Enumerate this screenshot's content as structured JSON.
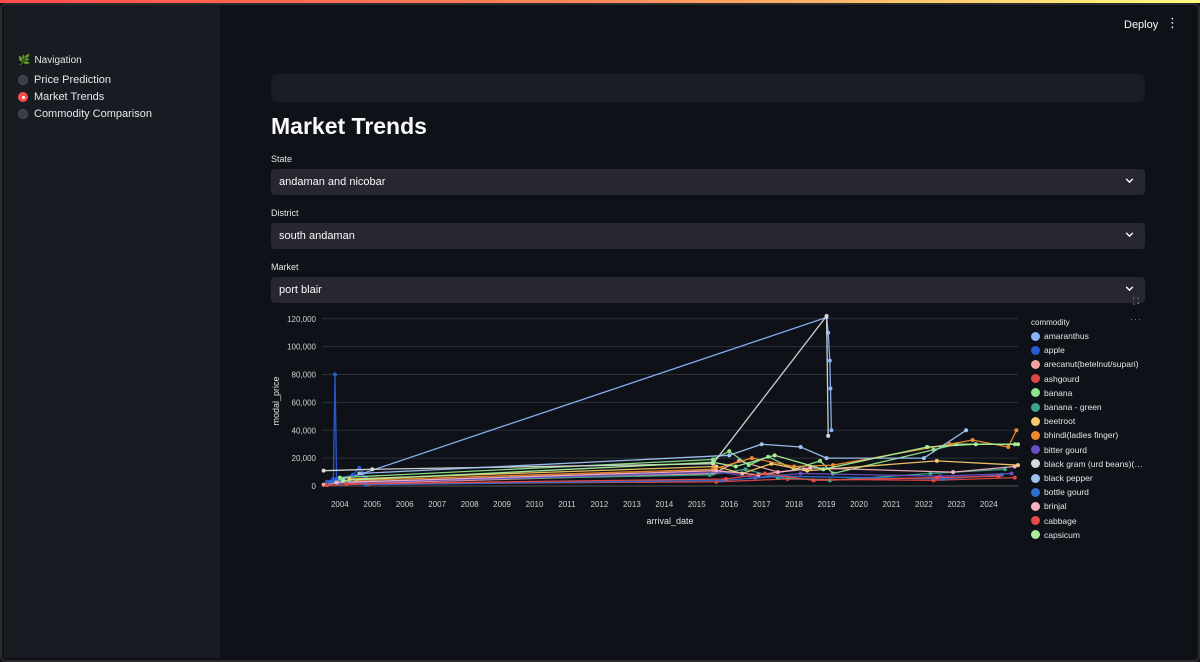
{
  "header": {
    "deploy_label": "Deploy",
    "menu_icon": "⋮"
  },
  "sidebar": {
    "title": "Navigation",
    "items": [
      {
        "label": "Price Prediction",
        "selected": false
      },
      {
        "label": "Market Trends",
        "selected": true
      },
      {
        "label": "Commodity Comparison",
        "selected": false
      }
    ]
  },
  "main": {
    "title": "Market Trends",
    "filters": [
      {
        "label": "State",
        "value": "andaman and nicobar"
      },
      {
        "label": "District",
        "value": "south andaman"
      },
      {
        "label": "Market",
        "value": "port blair"
      }
    ]
  },
  "chart_data": {
    "type": "line",
    "xlabel": "arrival_date",
    "ylabel": "modal_price",
    "x_ticks": [
      "2004",
      "2005",
      "2006",
      "2007",
      "2008",
      "2009",
      "2010",
      "2011",
      "2012",
      "2013",
      "2014",
      "2015",
      "2016",
      "2017",
      "2018",
      "2019",
      "2020",
      "2021",
      "2022",
      "2023",
      "2024"
    ],
    "y_ticks": [
      0,
      20000,
      40000,
      60000,
      80000,
      100000,
      120000
    ],
    "y_tick_labels": [
      "0",
      "20,000",
      "40,000",
      "60,000",
      "80,000",
      "100,000",
      "120,000"
    ],
    "ylim": [
      0,
      122000
    ],
    "xlim": [
      2003.45,
      2024.9
    ],
    "grid": true,
    "legend": {
      "title": "commodity",
      "placement": "right"
    },
    "series": [
      {
        "name": "amaranthus",
        "color": "#8ab4f8",
        "points": [
          [
            2003.6,
            2000
          ],
          [
            2004.7,
            9000
          ],
          [
            2019.0,
            121000
          ],
          [
            2019.05,
            110000
          ],
          [
            2019.1,
            90000
          ],
          [
            2019.12,
            70000
          ],
          [
            2019.15,
            40000
          ]
        ]
      },
      {
        "name": "apple",
        "color": "#2a5bd7",
        "points": [
          [
            2003.6,
            3000
          ],
          [
            2003.8,
            5000
          ],
          [
            2003.85,
            80000
          ],
          [
            2003.9,
            5000
          ],
          [
            2004.4,
            8000
          ],
          [
            2004.6,
            13000
          ],
          [
            2004.8,
            6000
          ]
        ]
      },
      {
        "name": "arecanut(betelnut/supari)",
        "color": "#f4a3a3",
        "points": [
          [
            2003.5,
            1000
          ],
          [
            2004.2,
            3000
          ],
          [
            2004.8,
            2000
          ],
          [
            2015.5,
            9000
          ],
          [
            2016.3,
            18000
          ],
          [
            2017.5,
            10000
          ],
          [
            2018.3,
            12000
          ]
        ]
      },
      {
        "name": "ashgourd",
        "color": "#e04646",
        "points": [
          [
            2003.6,
            500
          ],
          [
            2004.9,
            1500
          ],
          [
            2015.6,
            3000
          ],
          [
            2017.8,
            5000
          ],
          [
            2022.3,
            4000
          ],
          [
            2024.8,
            6000
          ]
        ]
      },
      {
        "name": "banana",
        "color": "#8ee68a",
        "points": [
          [
            2004.0,
            6000
          ],
          [
            2015.5,
            19000
          ],
          [
            2016.0,
            25000
          ],
          [
            2016.6,
            15000
          ],
          [
            2017.2,
            21000
          ],
          [
            2018.0,
            12000
          ],
          [
            2018.8,
            18000
          ],
          [
            2019.2,
            9000
          ],
          [
            2022.3,
            26000
          ],
          [
            2023.0,
            30000
          ],
          [
            2024.8,
            30000
          ]
        ]
      },
      {
        "name": "banana - green",
        "color": "#3ea589",
        "points": [
          [
            2004.0,
            3000
          ],
          [
            2015.4,
            8000
          ],
          [
            2016.5,
            12000
          ],
          [
            2017.5,
            6000
          ],
          [
            2019.1,
            4000
          ],
          [
            2022.2,
            9000
          ],
          [
            2024.5,
            12000
          ]
        ]
      },
      {
        "name": "beetroot",
        "color": "#f5c96a",
        "points": [
          [
            2004.3,
            5000
          ],
          [
            2015.6,
            14000
          ],
          [
            2016.4,
            9000
          ],
          [
            2017.3,
            16000
          ],
          [
            2018.4,
            11000
          ],
          [
            2022.4,
            18000
          ],
          [
            2024.9,
            15000
          ]
        ]
      },
      {
        "name": "bhindi(ladies finger)",
        "color": "#f0892e",
        "points": [
          [
            2004.5,
            4000
          ],
          [
            2015.5,
            12000
          ],
          [
            2016.7,
            20000
          ],
          [
            2018.0,
            14000
          ],
          [
            2019.2,
            15000
          ],
          [
            2022.8,
            30000
          ],
          [
            2023.5,
            33000
          ],
          [
            2024.6,
            28000
          ],
          [
            2024.85,
            40000
          ]
        ]
      },
      {
        "name": "bitter gourd",
        "color": "#6b4fc7",
        "points": [
          [
            2004.0,
            2000
          ],
          [
            2015.7,
            10000
          ],
          [
            2016.8,
            6000
          ],
          [
            2018.2,
            9000
          ],
          [
            2022.5,
            7000
          ],
          [
            2024.7,
            9000
          ]
        ]
      },
      {
        "name": "black gram (urd beans)(…",
        "color": "#d9d9d9",
        "points": [
          [
            2003.5,
            11000
          ],
          [
            2005.0,
            12000
          ],
          [
            2015.5,
            16000
          ],
          [
            2019.0,
            122000
          ],
          [
            2019.05,
            36000
          ]
        ]
      },
      {
        "name": "black pepper",
        "color": "#9fc3f0",
        "points": [
          [
            2004.6,
            9000
          ],
          [
            2016.0,
            22000
          ],
          [
            2017.0,
            30000
          ],
          [
            2018.2,
            28000
          ],
          [
            2019.0,
            20000
          ],
          [
            2022.0,
            20000
          ],
          [
            2023.3,
            40000
          ]
        ]
      },
      {
        "name": "bottle gourd",
        "color": "#2f6fd0",
        "points": [
          [
            2003.7,
            3000
          ],
          [
            2004.8,
            1000
          ],
          [
            2015.8,
            4000
          ],
          [
            2017.6,
            7000
          ],
          [
            2022.6,
            5000
          ],
          [
            2024.4,
            8000
          ]
        ]
      },
      {
        "name": "brinjal",
        "color": "#f7b2c2",
        "points": [
          [
            2003.9,
            2500
          ],
          [
            2015.6,
            11000
          ],
          [
            2016.9,
            8000
          ],
          [
            2018.5,
            13000
          ],
          [
            2022.9,
            10000
          ],
          [
            2024.8,
            14000
          ]
        ]
      },
      {
        "name": "cabbage",
        "color": "#e84a4a",
        "points": [
          [
            2004.2,
            1500
          ],
          [
            2015.9,
            5000
          ],
          [
            2017.1,
            9000
          ],
          [
            2018.6,
            4000
          ],
          [
            2022.4,
            6000
          ],
          [
            2024.3,
            7000
          ]
        ]
      },
      {
        "name": "capsicum",
        "color": "#a9ef98",
        "points": [
          [
            2004.1,
            4000
          ],
          [
            2015.5,
            17000
          ],
          [
            2016.2,
            14000
          ],
          [
            2017.4,
            22000
          ],
          [
            2018.9,
            12000
          ],
          [
            2022.1,
            28000
          ],
          [
            2023.6,
            30000
          ],
          [
            2024.9,
            30000
          ]
        ]
      }
    ]
  }
}
